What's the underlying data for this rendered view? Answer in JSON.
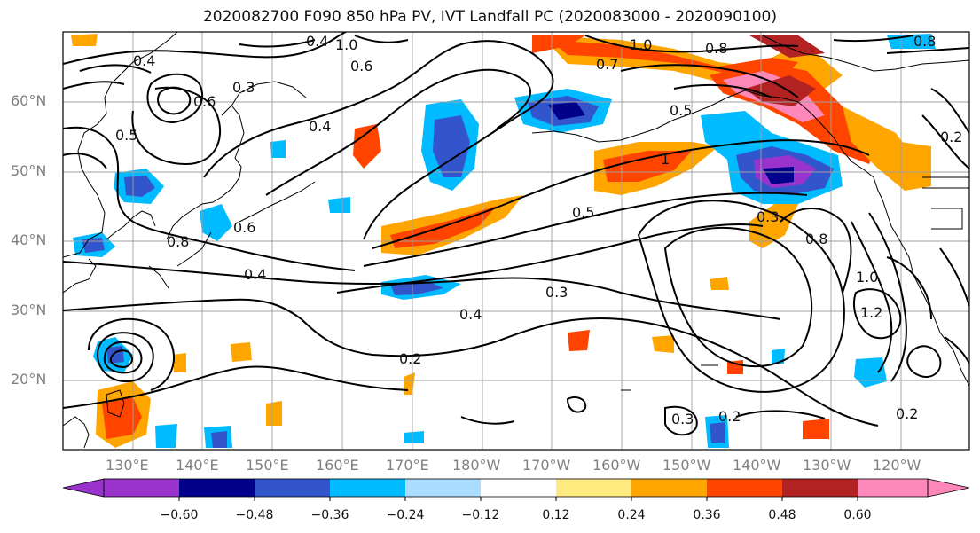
{
  "title": "2020082700 F090 850 hPa PV, IVT Landfall PC (2020083000 - 2020090100)",
  "lat_labels": [
    "60°N",
    "50°N",
    "40°N",
    "30°N",
    "20°N"
  ],
  "lon_labels": [
    "130°E",
    "140°E",
    "150°E",
    "160°E",
    "170°E",
    "180°W",
    "170°W",
    "160°W",
    "150°W",
    "140°W",
    "130°W",
    "120°W"
  ],
  "colorbar": {
    "colors": [
      "#9933cc",
      "#00008b",
      "#3355cc",
      "#00bbff",
      "#aaddff",
      "#ffffff",
      "#ffea80",
      "#ffa500",
      "#ff4400",
      "#b22222",
      "#ff88bb"
    ],
    "tick_labels": [
      "−0.60",
      "−0.48",
      "−0.36",
      "−0.24",
      "−0.12",
      "0.12",
      "0.24",
      "0.36",
      "0.48",
      "0.60"
    ]
  },
  "contour_labels": [
    "1.0",
    "0.4",
    "0.6",
    "0.3",
    "0.7",
    "0.5",
    "0.8",
    "0.6",
    "0.4",
    "0.4",
    "1.0",
    "0.8",
    "0.5",
    "1",
    "0.3",
    "0.5",
    "0.8",
    "1.0",
    "1.2",
    "0.3",
    "0.4",
    "0.2",
    "0.3",
    "0.2",
    "0.2",
    "0.2",
    "0.4",
    "0.8",
    "0.6"
  ],
  "colors": {
    "contour": "#000000",
    "grid": "#a0a0a0",
    "coast": "#000000"
  }
}
